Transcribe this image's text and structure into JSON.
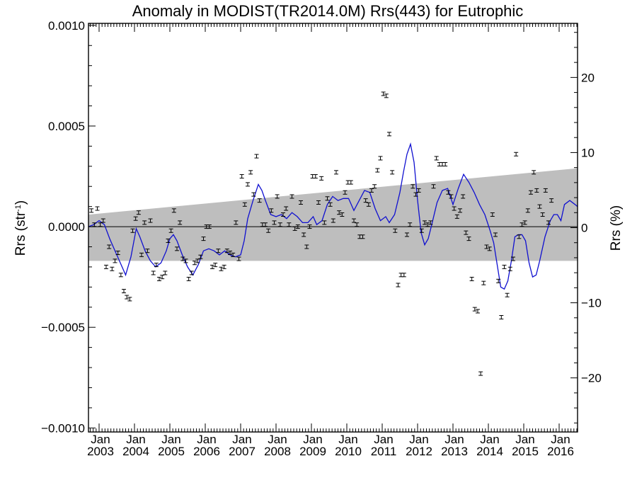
{
  "chart_data": {
    "type": "scatter",
    "title": "Anomaly in MODIST(TR2014.0M) Rrs(443) for Eutrophic",
    "ylabel_left": "Rrs (str",
    "ylabel_left_sup": "-1",
    "ylabel_left_close": ")",
    "ylabel_right": "Rrs (%)",
    "xlim": [
      2002.7,
      2016.52
    ],
    "ylim": [
      -0.00102,
      0.00101
    ],
    "ylim_right_pct": [
      -27.2,
      27.2
    ],
    "x_ticks": [
      {
        "x": 2003.0,
        "month": "Jan",
        "year": "2003"
      },
      {
        "x": 2004.0,
        "month": "Jan",
        "year": "2004"
      },
      {
        "x": 2005.0,
        "month": "Jan",
        "year": "2005"
      },
      {
        "x": 2006.0,
        "month": "Jan",
        "year": "2006"
      },
      {
        "x": 2007.0,
        "month": "Jan",
        "year": "2007"
      },
      {
        "x": 2008.0,
        "month": "Jan",
        "year": "2008"
      },
      {
        "x": 2009.0,
        "month": "Jan",
        "year": "2009"
      },
      {
        "x": 2010.0,
        "month": "Jan",
        "year": "2010"
      },
      {
        "x": 2011.0,
        "month": "Jan",
        "year": "2011"
      },
      {
        "x": 2012.0,
        "month": "Jan",
        "year": "2012"
      },
      {
        "x": 2013.0,
        "month": "Jan",
        "year": "2013"
      },
      {
        "x": 2014.0,
        "month": "Jan",
        "year": "2014"
      },
      {
        "x": 2015.0,
        "month": "Jan",
        "year": "2015"
      },
      {
        "x": 2016.0,
        "month": "Jan",
        "year": "2016"
      }
    ],
    "y_ticks_left": [
      {
        "v": 0.001,
        "label": "0.0010"
      },
      {
        "v": 0.0005,
        "label": "0.0005"
      },
      {
        "v": 0.0,
        "label": "0.0000"
      },
      {
        "v": -0.0005,
        "label": "−0.0005"
      },
      {
        "v": -0.001,
        "label": "−0.0010"
      }
    ],
    "y_ticks_right": [
      {
        "v": 20,
        "label": "20"
      },
      {
        "v": 10,
        "label": "10"
      },
      {
        "v": 0,
        "label": "0"
      },
      {
        "v": -10,
        "label": "−10"
      },
      {
        "v": -20,
        "label": "−20"
      }
    ],
    "trend_band": {
      "start": {
        "x": 2002.7,
        "upper": 6e-05,
        "lower": -0.00017
      },
      "end": {
        "x": 2016.52,
        "upper": 0.00029,
        "lower": -0.00017
      }
    },
    "zero_line": 0.0,
    "points_x_start": 2002.7,
    "points_step": 0.08333,
    "points": [
      -7e-05,
      8e-05,
      1e-05,
      9e-05,
      1e-05,
      3e-05,
      -0.0002,
      -0.0001,
      -0.00021,
      -0.00017,
      -0.00013,
      -0.00024,
      -0.00032,
      -0.00035,
      -0.00036,
      -2e-05,
      4e-05,
      7e-05,
      -0.00014,
      2e-05,
      -0.00012,
      3e-05,
      -0.00023,
      -0.00019,
      -0.00026,
      -0.00025,
      -0.00023,
      -7e-05,
      -2e-05,
      8e-05,
      -0.00011,
      2e-05,
      -0.00016,
      -0.00017,
      -0.00026,
      -0.00023,
      -0.00018,
      -0.00017,
      -0.00015,
      -6e-05,
      0.0,
      0.0,
      -0.0002,
      -0.00019,
      -0.00012,
      -0.00021,
      -0.0002,
      -0.00012,
      -0.00013,
      -0.00014,
      2e-05,
      -0.00016,
      0.00025,
      0.00011,
      0.00021,
      0.00027,
      0.00016,
      0.00035,
      0.00013,
      1e-05,
      1e-05,
      -2e-05,
      8e-05,
      2e-05,
      0.00015,
      1e-05,
      6e-05,
      9e-05,
      1e-05,
      0.00015,
      -1e-05,
      0.0,
      0.00012,
      -4e-05,
      -0.0001,
      0.0,
      0.00025,
      0.00025,
      0.00012,
      0.00024,
      2e-05,
      0.00014,
      0.00011,
      3e-05,
      0.00027,
      7e-05,
      6e-05,
      0.00017,
      0.00022,
      0.00022,
      3e-05,
      1e-05,
      -5e-05,
      -5e-05,
      0.00013,
      0.00011,
      0.00018,
      0.0002,
      0.00028,
      0.00034,
      0.00066,
      0.00065,
      0.00046,
      0.00027,
      -2e-05,
      -0.00029,
      -0.00024,
      -0.00024,
      -4e-05,
      1e-05,
      0.0002,
      0.00016,
      0.00018,
      -2e-05,
      2e-05,
      1e-05,
      2e-05,
      0.0002,
      0.00034,
      0.00031,
      0.00031,
      0.00031,
      0.00017,
      0.00015,
      9e-05,
      5e-05,
      8e-05,
      0.00015,
      -3e-05,
      -6e-05,
      -0.00026,
      -0.00041,
      -0.00042,
      -0.00073,
      -0.00028,
      -0.0001,
      -0.00011,
      6e-05,
      -4e-05,
      -0.00027,
      -0.00045,
      -0.0002,
      -0.00034,
      -0.00021,
      -0.00016,
      0.00036,
      -5e-05,
      1e-05,
      2e-05,
      8e-05,
      0.00017,
      0.00027,
      0.00018,
      0.0001,
      6e-05,
      0.00018,
      2e-05,
      0.00013
    ],
    "smooth_line": {
      "color": "#1010d0",
      "x": [
        2002.7,
        2002.85,
        2003.0,
        2003.15,
        2003.3,
        2003.45,
        2003.6,
        2003.75,
        2003.9,
        2004.05,
        2004.15,
        2004.3,
        2004.45,
        2004.6,
        2004.75,
        2004.9,
        2005.0,
        2005.1,
        2005.2,
        2005.35,
        2005.5,
        2005.65,
        2005.8,
        2005.95,
        2006.1,
        2006.25,
        2006.4,
        2006.55,
        2006.7,
        2006.85,
        2007.0,
        2007.1,
        2007.2,
        2007.35,
        2007.5,
        2007.6,
        2007.7,
        2007.85,
        2008.0,
        2008.15,
        2008.3,
        2008.45,
        2008.6,
        2008.75,
        2008.9,
        2009.05,
        2009.15,
        2009.3,
        2009.45,
        2009.6,
        2009.75,
        2009.9,
        2010.05,
        2010.2,
        2010.35,
        2010.5,
        2010.65,
        2010.8,
        2010.95,
        2011.1,
        2011.2,
        2011.35,
        2011.5,
        2011.6,
        2011.7,
        2011.8,
        2011.9,
        2012.0,
        2012.1,
        2012.2,
        2012.3,
        2012.4,
        2012.55,
        2012.7,
        2012.85,
        2013.0,
        2013.15,
        2013.3,
        2013.45,
        2013.6,
        2013.75,
        2013.9,
        2014.05,
        2014.15,
        2014.25,
        2014.35,
        2014.45,
        2014.55,
        2014.65,
        2014.75,
        2014.85,
        2014.95,
        2015.05,
        2015.15,
        2015.25,
        2015.35,
        2015.45,
        2015.6,
        2015.75,
        2015.85,
        2015.95,
        2016.05,
        2016.15,
        2016.3,
        2016.45,
        2016.52
      ],
      "y": [
        0.0,
        1e-05,
        3e-05,
        1e-05,
        -6e-05,
        -0.00012,
        -0.00018,
        -0.00024,
        -0.00015,
        -1e-05,
        -5e-05,
        -0.00012,
        -0.00017,
        -0.0002,
        -0.00018,
        -0.00012,
        -6e-05,
        -4e-05,
        -7e-05,
        -0.00014,
        -0.0002,
        -0.00024,
        -0.00019,
        -0.00012,
        -0.00011,
        -0.00012,
        -0.00014,
        -0.00012,
        -0.00014,
        -0.00015,
        -0.00014,
        -7e-05,
        4e-05,
        0.00013,
        0.00021,
        0.00018,
        0.00013,
        6e-05,
        5e-05,
        6e-05,
        4e-05,
        7e-05,
        5e-05,
        2e-05,
        2e-05,
        5e-05,
        1e-05,
        3e-05,
        0.00011,
        0.00015,
        0.00013,
        0.00014,
        0.00014,
        8e-05,
        0.00013,
        0.00018,
        0.00017,
        9e-05,
        3e-05,
        5e-05,
        2e-05,
        6e-05,
        0.00017,
        0.00027,
        0.00036,
        0.00041,
        0.00032,
        0.00013,
        -3e-05,
        -9e-05,
        -6e-05,
        1e-05,
        0.00012,
        0.00018,
        0.00019,
        0.00011,
        0.00019,
        0.00026,
        0.00022,
        0.00017,
        0.00011,
        6e-05,
        -2e-05,
        -8e-05,
        -0.00019,
        -0.0003,
        -0.00031,
        -0.00027,
        -0.00017,
        -5e-05,
        -4e-05,
        -4e-05,
        -7e-05,
        -0.00018,
        -0.00025,
        -0.00024,
        -0.00017,
        -5e-05,
        3e-05,
        6e-05,
        6e-05,
        3e-05,
        0.00011,
        0.00013,
        0.00011,
        0.0001
      ]
    },
    "grid": false
  }
}
